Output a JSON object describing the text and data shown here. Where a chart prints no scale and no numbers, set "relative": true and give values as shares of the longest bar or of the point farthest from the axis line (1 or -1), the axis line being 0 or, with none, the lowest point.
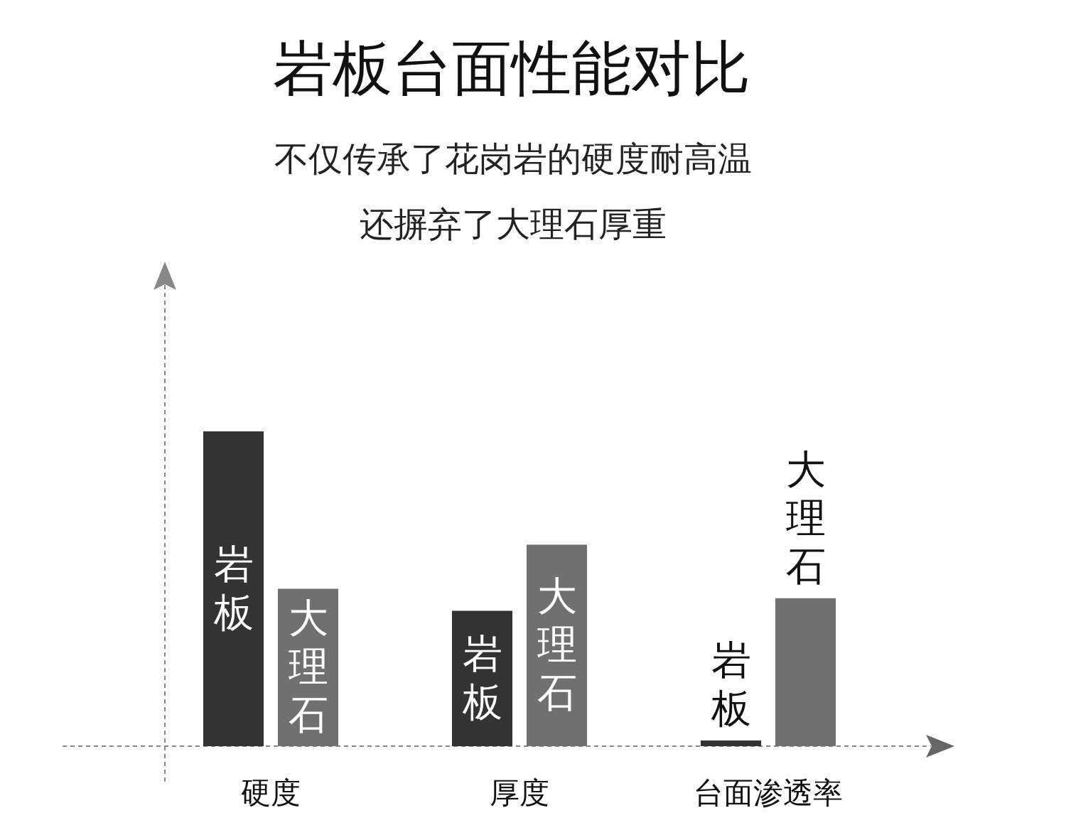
{
  "chart_data": {
    "type": "bar",
    "title": "岩板台面性能对比",
    "subtitle": "不仅传承了花岗岩的硬度耐高温还摒弃了大理石厚重",
    "relative": true,
    "categories": [
      "硬度",
      "厚度",
      "台面渗透率"
    ],
    "series": [
      {
        "name": "岩板",
        "color": "#333333",
        "values": [
          1,
          0.43,
          0.018
        ]
      },
      {
        "name": "大理石",
        "color": "#707070",
        "values": [
          0.5,
          0.64,
          0.47
        ]
      }
    ]
  }
}
